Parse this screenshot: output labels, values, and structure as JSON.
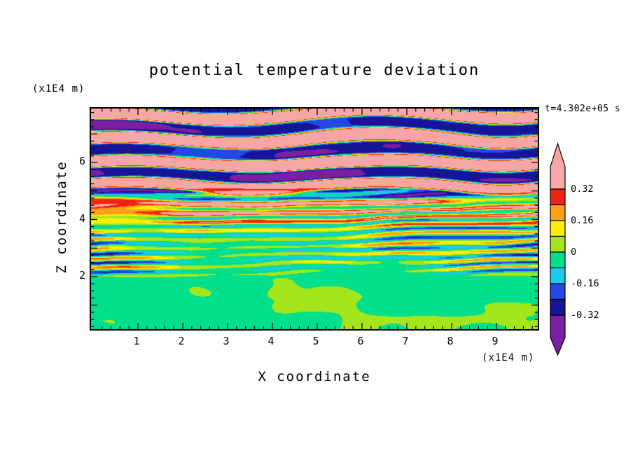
{
  "chart_data": {
    "type": "heatmap",
    "title": "potential temperature deviation",
    "xlabel": "X coordinate",
    "ylabel": "Z coordinate",
    "x_unit_factor": "(x1E4 m)",
    "y_unit_factor": "(x1E4 m)",
    "time_annotation": "t=4.302e+05 s",
    "x_ticks": [
      1,
      2,
      3,
      4,
      5,
      6,
      7,
      8,
      9
    ],
    "y_ticks": [
      2,
      4,
      6
    ],
    "x_range": [
      0,
      9.95
    ],
    "y_range": [
      0,
      7.9
    ],
    "grid": false,
    "legend_position": "right-colorbar",
    "colorbar": {
      "levels": [
        -0.32,
        -0.24,
        -0.16,
        -0.08,
        0,
        0.08,
        0.16,
        0.24,
        0.32
      ],
      "colors": [
        "#7B1FA2",
        "#171498",
        "#2646E6",
        "#19CBEC",
        "#00E08C",
        "#A4E51C",
        "#FFEE00",
        "#FF9E1B",
        "#EF2410",
        "#F7A6A6"
      ],
      "tick_labels": [
        "0.32",
        "0.16",
        "0",
        "-0.16",
        "-0.32"
      ],
      "tick_values": [
        0.32,
        0.16,
        0,
        -0.16,
        -0.32
      ],
      "over_color": "#F7A6A6",
      "under_color": "#7B1FA2"
    },
    "field_description": "Filled-contour potential temperature deviation field: broad alternating pink (v>0.32) and purple (v<-0.32) wave bands in the upper part (z>4.5), thin braided multicolour stripes (red/orange/yellow/cyan/blue over pink-green background) for 2<z<4.5, and a near-zero smooth region below z=2 of spring green with green-yellow blobs (|v|<0.08)"
  }
}
